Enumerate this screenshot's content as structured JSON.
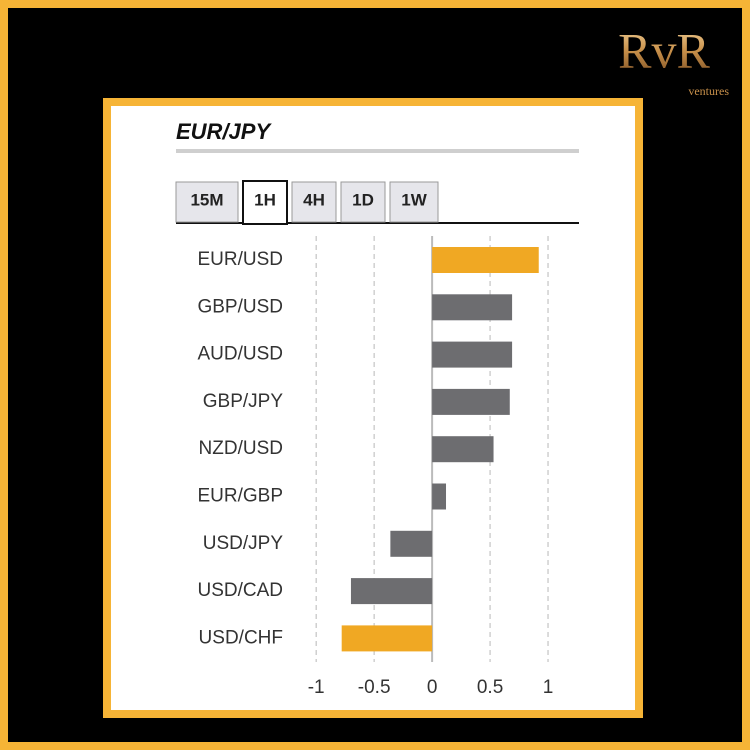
{
  "brand": {
    "name": "RvR",
    "tagline": "ventures"
  },
  "tabs": [
    "15M",
    "1H",
    "4H",
    "1D",
    "1W"
  ],
  "active_tab": 1,
  "chart_data": {
    "type": "bar",
    "orientation": "horizontal",
    "title": "EUR/JPY",
    "categories": [
      "EUR/USD",
      "GBP/USD",
      "AUD/USD",
      "GBP/JPY",
      "NZD/USD",
      "EUR/GBP",
      "USD/JPY",
      "USD/CAD",
      "USD/CHF"
    ],
    "values": [
      0.92,
      0.69,
      0.69,
      0.67,
      0.53,
      0.12,
      -0.36,
      -0.7,
      -0.78
    ],
    "colors": [
      "#f0a823",
      "#6d6d70",
      "#6d6d70",
      "#6d6d70",
      "#6d6d70",
      "#6d6d70",
      "#6d6d70",
      "#6d6d70",
      "#f0a823"
    ],
    "xlim": [
      -1.2,
      1.25
    ],
    "xticks": [
      -1,
      -0.5,
      0,
      0.5,
      1
    ],
    "grid": true
  }
}
